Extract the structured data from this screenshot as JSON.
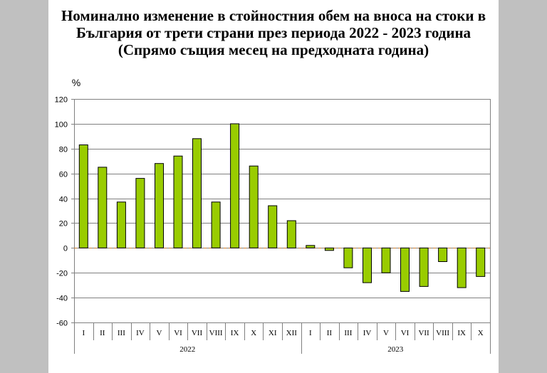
{
  "chart_data": {
    "type": "bar",
    "title": [
      "Номинално изменение в стойностния обем на вноса на стоки в",
      "България от трети страни през периода 2022 - 2023 година"
    ],
    "subtitle": "(Спрямо същия месец на предходната година)",
    "ylabel": "%",
    "ylim": [
      -60,
      120
    ],
    "yticks": [
      120,
      100,
      80,
      60,
      40,
      20,
      0,
      -20,
      -40,
      -60
    ],
    "groups": [
      {
        "label": "2022",
        "categories": [
          "I",
          "II",
          "III",
          "IV",
          "V",
          "VI",
          "VII",
          "VIII",
          "IX",
          "X",
          "XI",
          "XII"
        ],
        "values": [
          83,
          65,
          37,
          56,
          68,
          74,
          88,
          37,
          100,
          66,
          34,
          22
        ]
      },
      {
        "label": "2023",
        "categories": [
          "I",
          "II",
          "III",
          "IV",
          "V",
          "VI",
          "VII",
          "VIII",
          "IX",
          "X"
        ],
        "values": [
          2,
          -2,
          -16,
          -28,
          -20,
          -35,
          -31,
          -11,
          -32,
          -23
        ]
      }
    ],
    "grid": true,
    "legend": false,
    "colors": {
      "bar": "#99cc00",
      "bar_outline": "#000000",
      "grid": "#808080",
      "zero_line": "#cc7a29"
    }
  }
}
